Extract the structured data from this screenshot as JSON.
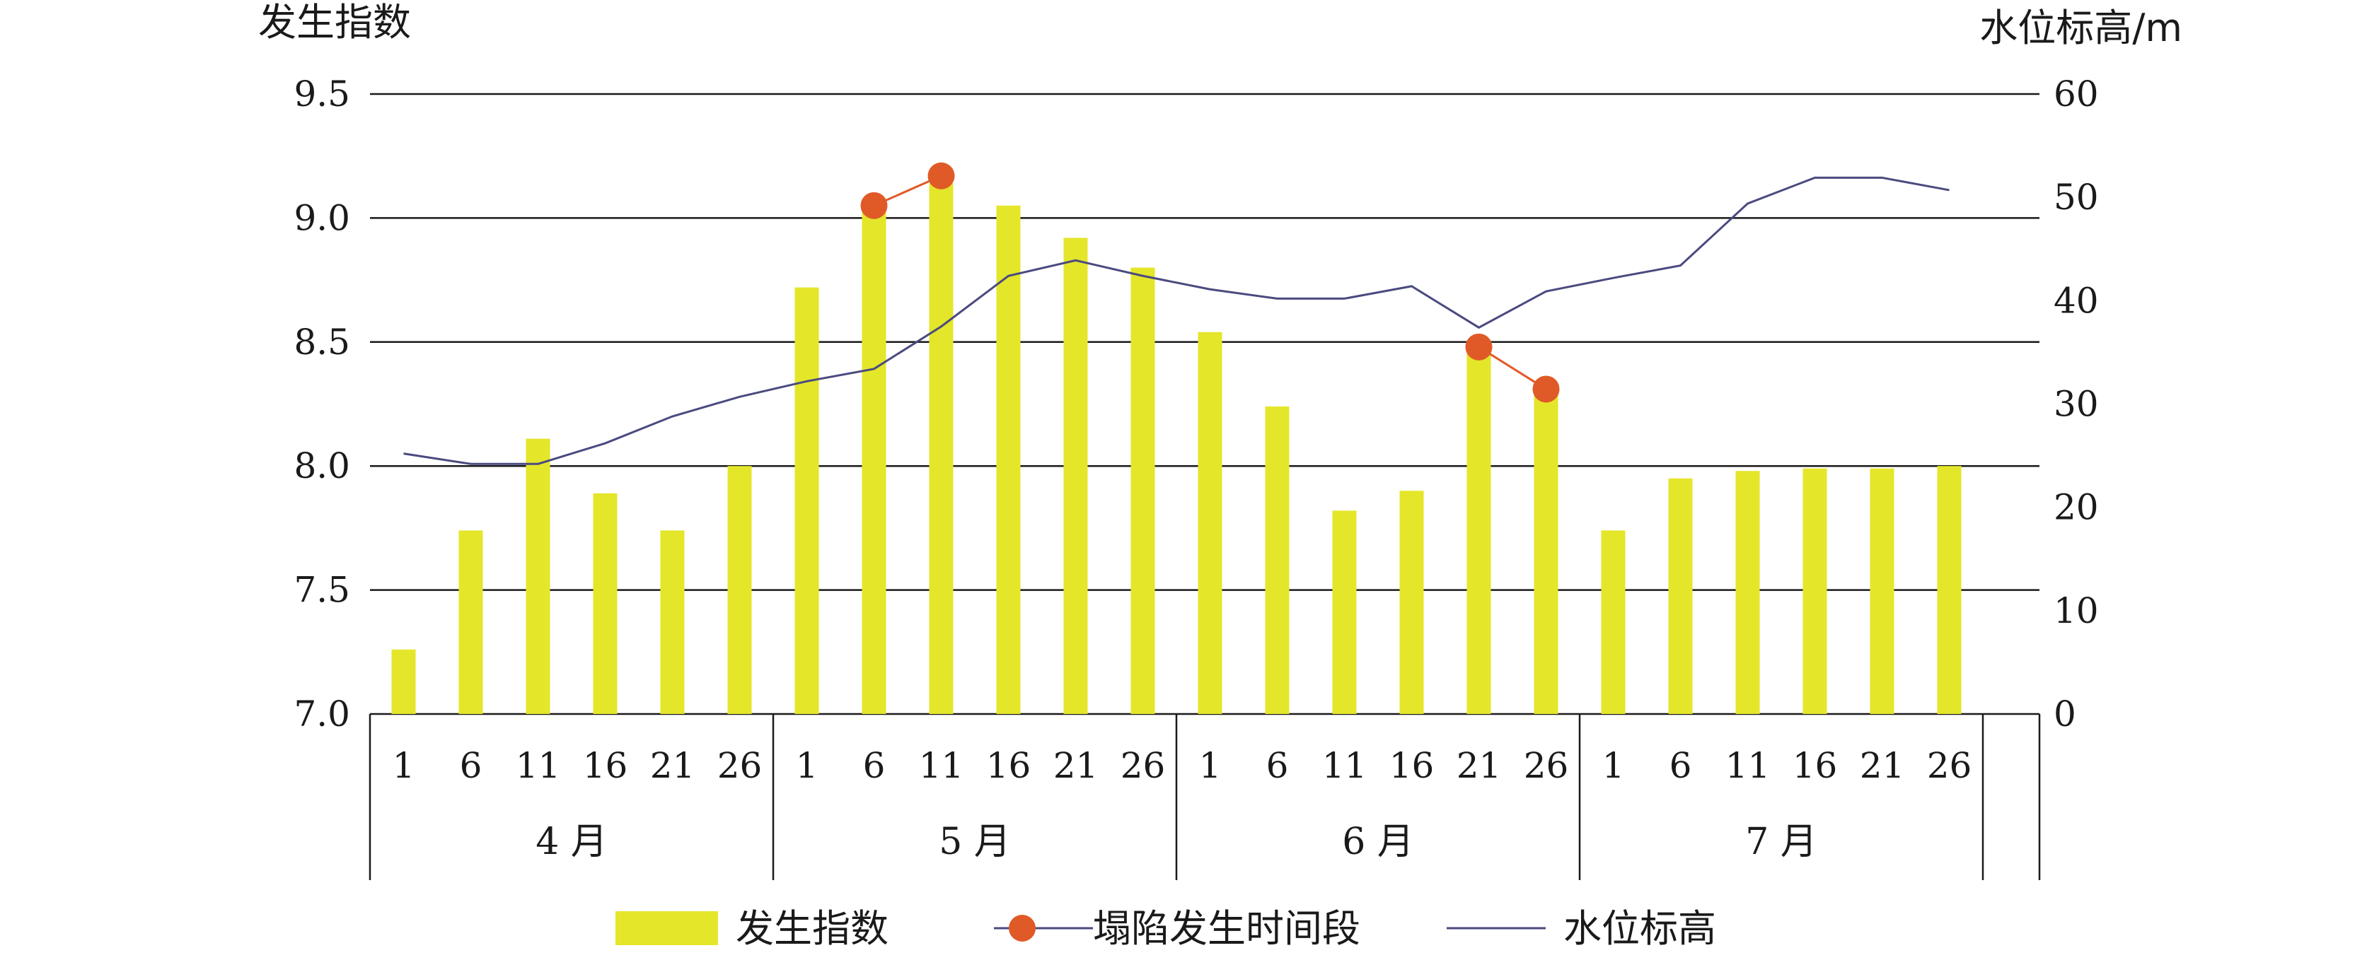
{
  "chart_data": {
    "type": "bar",
    "left_axis_title": "发生指数",
    "right_axis_title": "水位标高/m",
    "y_left": {
      "min": 7.0,
      "max": 9.5,
      "ticks": [
        "7.0",
        "7.5",
        "8.0",
        "8.5",
        "9.0",
        "9.5"
      ]
    },
    "y_right": {
      "min": 0,
      "max": 60,
      "ticks": [
        "0",
        "10",
        "20",
        "30",
        "40",
        "50",
        "60"
      ]
    },
    "grid": true,
    "legend_position": "bottom",
    "month_groups": [
      {
        "label": "4 月",
        "days": [
          "1",
          "6",
          "11",
          "16",
          "21",
          "26"
        ]
      },
      {
        "label": "5 月",
        "days": [
          "1",
          "6",
          "11",
          "16",
          "21",
          "26"
        ]
      },
      {
        "label": "6 月",
        "days": [
          "1",
          "6",
          "11",
          "16",
          "21",
          "26"
        ]
      },
      {
        "label": "7 月",
        "days": [
          "1",
          "6",
          "11",
          "16",
          "21",
          "26"
        ]
      }
    ],
    "series": [
      {
        "name": "发生指数",
        "kind": "bar",
        "axis": "left",
        "color": "#e4e62a",
        "values": [
          7.26,
          7.74,
          8.11,
          7.89,
          7.74,
          8.0,
          8.72,
          9.04,
          9.14,
          9.05,
          8.92,
          8.8,
          8.54,
          8.24,
          7.82,
          7.9,
          8.47,
          8.32,
          7.74,
          7.95,
          7.98,
          7.99,
          7.99,
          8.0
        ]
      },
      {
        "name": "塌陷发生时间段",
        "kind": "marker-line",
        "axis": "left",
        "color": "#e05a28",
        "points": [
          {
            "index": 7,
            "value": 9.05
          },
          {
            "index": 8,
            "value": 9.17
          },
          {
            "index": 16,
            "value": 8.48
          },
          {
            "index": 17,
            "value": 8.31
          }
        ]
      },
      {
        "name": "水位标高",
        "kind": "line",
        "axis": "right",
        "color": "#4a4a80",
        "values": [
          25.2,
          24.2,
          24.2,
          26.2,
          28.8,
          30.7,
          32.2,
          33.4,
          37.5,
          42.4,
          43.9,
          42.4,
          41.1,
          40.2,
          40.2,
          41.4,
          37.4,
          40.9,
          42.2,
          43.4,
          49.4,
          51.9,
          51.9,
          50.7
        ]
      }
    ]
  }
}
